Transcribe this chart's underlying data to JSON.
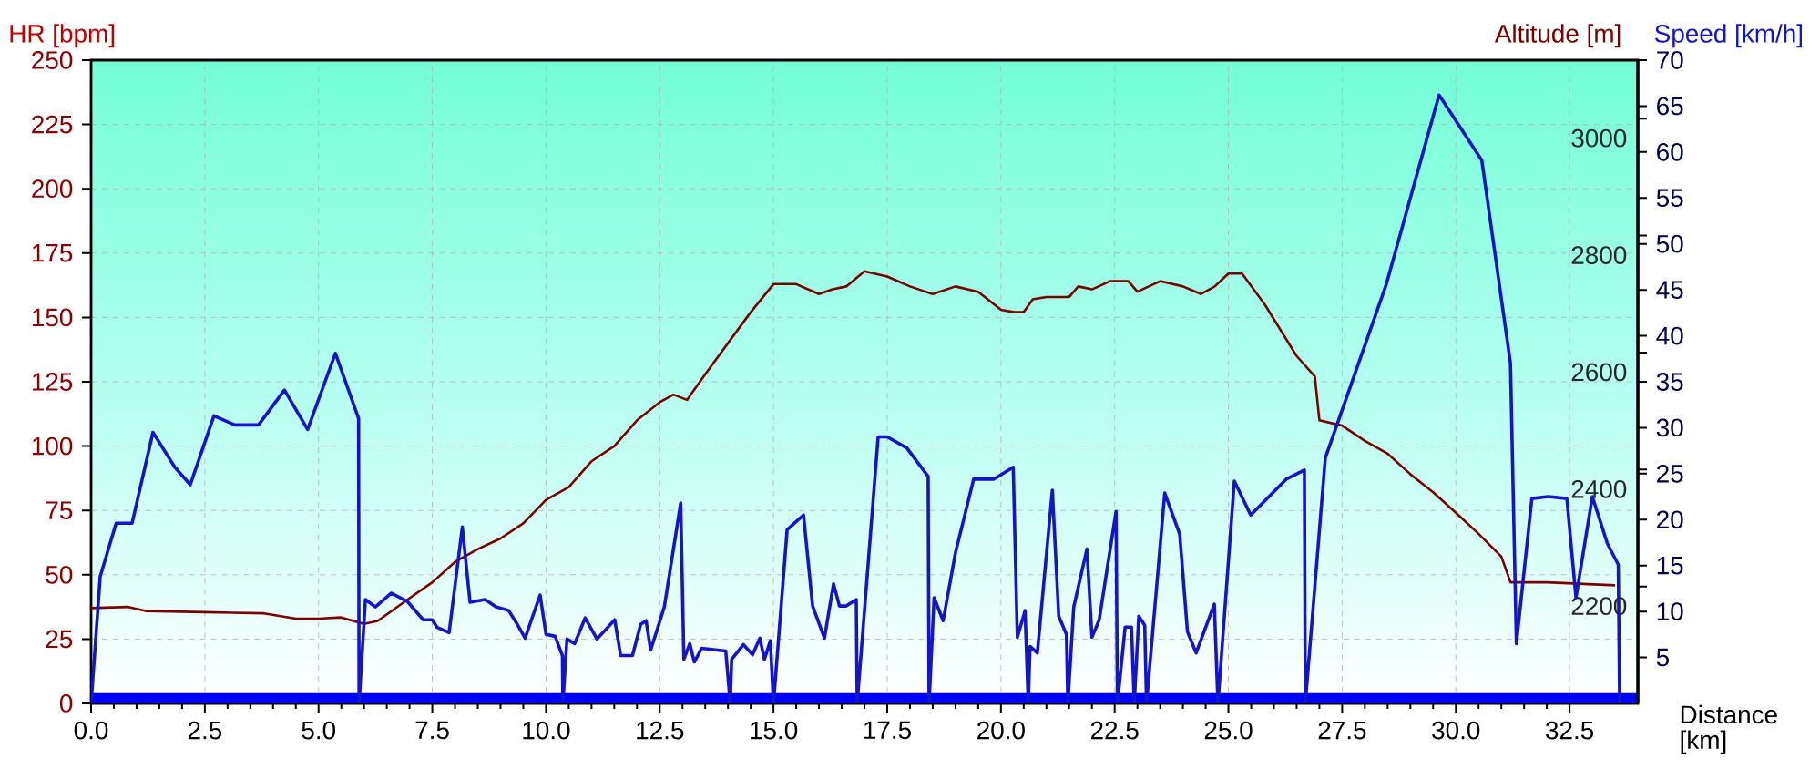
{
  "chart_data": {
    "type": "line",
    "xlabel": "Distance [km]",
    "ylabel": "HR [bpm]",
    "y2label": "Altitude [m]",
    "y3label": "Speed [km/h]",
    "xlim": [
      0,
      34
    ],
    "xticks": [
      {
        "value": 0,
        "label": "0.0"
      },
      {
        "value": 2.5,
        "label": "2.5"
      },
      {
        "value": 5,
        "label": "5.0"
      },
      {
        "value": 7.5,
        "label": "7.5"
      },
      {
        "value": 10,
        "label": "10.0"
      },
      {
        "value": 12.5,
        "label": "12.5"
      },
      {
        "value": 15,
        "label": "15.0"
      },
      {
        "value": 17.5,
        "label": "17.5"
      },
      {
        "value": 20,
        "label": "20.0"
      },
      {
        "value": 22.5,
        "label": "22.5"
      },
      {
        "value": 25,
        "label": "25.0"
      },
      {
        "value": 27.5,
        "label": "27.5"
      },
      {
        "value": 30,
        "label": "30.0"
      },
      {
        "value": 32.5,
        "label": "32.5"
      }
    ],
    "ylim": [
      0,
      250
    ],
    "yticks": [
      0,
      25,
      50,
      75,
      100,
      125,
      150,
      175,
      200,
      225,
      250
    ],
    "y2lim": [
      2000,
      3100
    ],
    "y2ticks": [
      2200,
      2400,
      2600,
      2800,
      3000
    ],
    "y3lim": [
      0,
      70
    ],
    "y3ticks": [
      5,
      10,
      15,
      20,
      25,
      30,
      35,
      40,
      45,
      50,
      55,
      60,
      65,
      70
    ],
    "grid": true,
    "marker": "none",
    "line_style": "solid",
    "bands": [
      {
        "axis": "y",
        "from": 0,
        "to": 4,
        "color": "#0000ff"
      }
    ],
    "series": [
      {
        "color": "#7a0000",
        "axis": "y2",
        "x": [
          0,
          0.8,
          1.2,
          2.5,
          3.8,
          4.5,
          5.0,
          5.5,
          6.0,
          6.3,
          7.0,
          7.5,
          8.0,
          8.5,
          9.0,
          9.5,
          10.0,
          10.5,
          11.0,
          11.5,
          12.0,
          12.5,
          12.8,
          13.1,
          13.5,
          14.0,
          14.5,
          15.0,
          15.5,
          16.0,
          16.3,
          16.6,
          17.0,
          17.5,
          18.0,
          18.5,
          19.0,
          19.5,
          20.0,
          20.3,
          20.5,
          20.7,
          21.0,
          21.5,
          21.7,
          22.0,
          22.4,
          22.8,
          23.0,
          23.5,
          24.0,
          24.4,
          24.7,
          25.0,
          25.3,
          25.8,
          26.5,
          26.9,
          27.0,
          27.5,
          28.0,
          28.5,
          29.0,
          29.5,
          30.0,
          30.5,
          31.0,
          31.2,
          32.0,
          33.5
        ],
        "values": [
          2163,
          2165,
          2158,
          2156,
          2154,
          2145,
          2145,
          2147,
          2136,
          2141,
          2180,
          2207,
          2242,
          2264,
          2282,
          2308,
          2348,
          2370,
          2414,
          2440,
          2484,
          2515,
          2528,
          2519,
          2563,
          2616,
          2669,
          2717,
          2717,
          2700,
          2708,
          2713,
          2739,
          2730,
          2713,
          2700,
          2713,
          2704,
          2673,
          2669,
          2669,
          2691,
          2695,
          2695,
          2713,
          2708,
          2722,
          2722,
          2704,
          2722,
          2713,
          2700,
          2713,
          2735,
          2735,
          2682,
          2594,
          2559,
          2484,
          2475,
          2449,
          2427,
          2392,
          2361,
          2326,
          2290,
          2251,
          2207,
          2207,
          2202
        ]
      },
      {
        "color": "#1414c8",
        "axis": "y3",
        "x": [
          0,
          0.2,
          0.55,
          0.9,
          1.36,
          1.84,
          2.18,
          2.7,
          3.16,
          3.68,
          4.25,
          4.76,
          5.37,
          5.88,
          5.89,
          6.03,
          6.25,
          6.6,
          6.95,
          7.3,
          7.5,
          7.6,
          7.87,
          8.16,
          8.33,
          8.66,
          8.9,
          9.05,
          9.18,
          9.37,
          9.54,
          9.87,
          10.0,
          10.2,
          10.36,
          10.37,
          10.46,
          10.63,
          10.86,
          11.12,
          11.51,
          11.64,
          11.9,
          12.08,
          12.2,
          12.3,
          12.6,
          12.96,
          13.03,
          13.16,
          13.26,
          13.42,
          13.95,
          14.05,
          14.08,
          14.34,
          14.54,
          14.7,
          14.8,
          14.93,
          15.0,
          15.3,
          15.66,
          15.86,
          16.12,
          16.32,
          16.45,
          16.6,
          16.82,
          16.84,
          17.3,
          17.5,
          17.93,
          18.4,
          18.42,
          18.53,
          18.73,
          19.0,
          19.4,
          19.84,
          20.27,
          20.36,
          20.53,
          20.6,
          20.64,
          20.8,
          21.13,
          21.27,
          21.44,
          21.47,
          21.6,
          21.89,
          22.0,
          22.16,
          22.53,
          22.56,
          22.73,
          22.87,
          22.93,
          23.03,
          23.16,
          23.2,
          23.6,
          23.93,
          24.1,
          24.29,
          24.69,
          24.77,
          25.13,
          25.49,
          26.27,
          26.67,
          26.69,
          27.13,
          28.47,
          29.63,
          30.57,
          31.2,
          31.33,
          31.67,
          32.03,
          32.44,
          32.64,
          33.0,
          33.33,
          33.57,
          33.6
        ],
        "values": [
          0,
          13.8,
          19.6,
          19.6,
          29.5,
          25.7,
          23.8,
          31.3,
          30.3,
          30.3,
          34.1,
          29.8,
          38.1,
          31.0,
          0,
          11.3,
          10.5,
          12.0,
          11.1,
          9.1,
          9.1,
          8.3,
          7.7,
          19.2,
          11.0,
          11.3,
          10.5,
          10.3,
          10.1,
          8.6,
          7.1,
          11.8,
          7.5,
          7.3,
          5.2,
          0,
          7.0,
          6.5,
          9.3,
          7.0,
          9.1,
          5.2,
          5.2,
          8.6,
          9.0,
          5.8,
          10.5,
          21.8,
          4.8,
          6.5,
          4.5,
          6.0,
          5.7,
          0,
          4.8,
          6.4,
          5.3,
          7.1,
          4.8,
          6.8,
          0,
          18.9,
          20.5,
          10.6,
          7.1,
          13.0,
          10.6,
          10.6,
          11.3,
          0,
          29.0,
          29.0,
          27.8,
          24.7,
          0,
          11.5,
          9.0,
          16.4,
          24.4,
          24.4,
          25.7,
          7.2,
          10.1,
          0,
          6.2,
          5.5,
          23.2,
          9.5,
          7.5,
          0,
          10.5,
          16.8,
          7.2,
          9.1,
          20.9,
          0,
          8.3,
          8.3,
          0,
          9.5,
          8.5,
          0,
          22.9,
          18.4,
          7.8,
          5.5,
          10.8,
          0,
          24.2,
          20.5,
          24.4,
          25.4,
          0,
          26.7,
          45.6,
          66.2,
          59.1,
          37.0,
          6.5,
          22.3,
          22.5,
          22.3,
          11.5,
          22.5,
          17.4,
          15.1,
          0
        ]
      }
    ]
  }
}
